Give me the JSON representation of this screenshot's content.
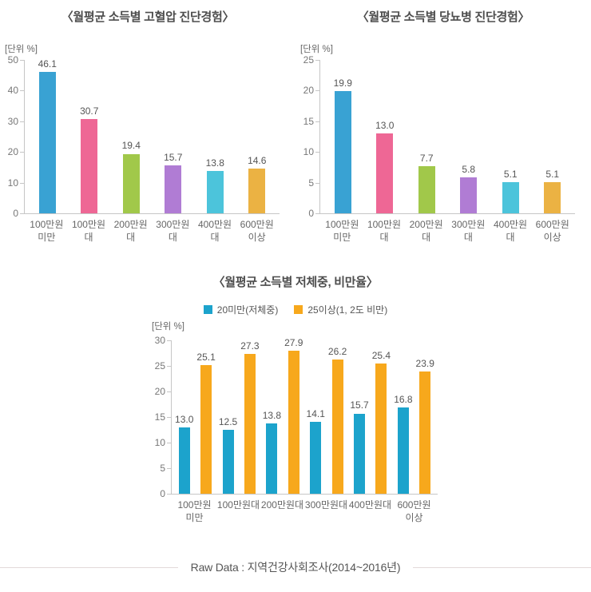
{
  "footer": {
    "text": "Raw Data : 지역건강사회조사(2014~2016년)"
  },
  "chart_data": [
    {
      "type": "bar",
      "title": "〈월평균 소득별 고혈압 진단경험〉",
      "unit_label": "[단위 %]",
      "categories": [
        "100만원\n미만",
        "100만원대",
        "200만원대",
        "300만원대",
        "400만원대",
        "600만원\n이상"
      ],
      "values": [
        46.1,
        30.7,
        19.4,
        15.7,
        13.8,
        14.6
      ],
      "value_labels": [
        "46.1",
        "30.7",
        "19.4",
        "15.7",
        "13.8",
        "14.6"
      ],
      "bar_colors": [
        "#39A2D3",
        "#EE6795",
        "#A1C84A",
        "#B07CD4",
        "#4CC4DB",
        "#EBB243"
      ],
      "ylim": [
        0,
        50
      ],
      "yticks": [
        0,
        10,
        20,
        30,
        40,
        50
      ],
      "grid": false,
      "legend_position": "none"
    },
    {
      "type": "bar",
      "title": "〈월평균 소득별 당뇨병 진단경험〉",
      "unit_label": "[단위 %]",
      "categories": [
        "100만원\n미만",
        "100만원대",
        "200만원대",
        "300만원대",
        "400만원대",
        "600만원\n이상"
      ],
      "values": [
        19.9,
        13.0,
        7.7,
        5.8,
        5.1,
        5.1
      ],
      "value_labels": [
        "19.9",
        "13.0",
        "7.7",
        "5.8",
        "5.1",
        "5.1"
      ],
      "bar_colors": [
        "#39A2D3",
        "#EE6795",
        "#A1C84A",
        "#B07CD4",
        "#4CC4DB",
        "#EBB243"
      ],
      "ylim": [
        0,
        25
      ],
      "yticks": [
        0,
        5,
        10,
        15,
        20,
        25
      ],
      "grid": false,
      "legend_position": "none"
    },
    {
      "type": "bar",
      "title": "〈월평균 소득별 저체중, 비만율〉",
      "unit_label": "[단위 %]",
      "categories": [
        "100만원\n미만",
        "100만원대",
        "200만원대",
        "300만원대",
        "400만원대",
        "600만원\n이상"
      ],
      "series": [
        {
          "name": "20미만(저체중)",
          "color": "#1CA3CC",
          "values": [
            13.0,
            12.5,
            13.8,
            14.1,
            15.7,
            16.8
          ],
          "value_labels": [
            "13.0",
            "12.5",
            "13.8",
            "14.1",
            "15.7",
            "16.8"
          ]
        },
        {
          "name": "25이상(1, 2도 비만)",
          "color": "#F7A81C",
          "values": [
            25.1,
            27.3,
            27.9,
            26.2,
            25.4,
            23.9
          ],
          "value_labels": [
            "25.1",
            "27.3",
            "27.9",
            "26.2",
            "25.4",
            "23.9"
          ]
        }
      ],
      "ylim": [
        0,
        30
      ],
      "yticks": [
        0,
        5,
        10,
        15,
        20,
        25,
        30
      ],
      "grid": false,
      "legend_position": "top"
    }
  ]
}
